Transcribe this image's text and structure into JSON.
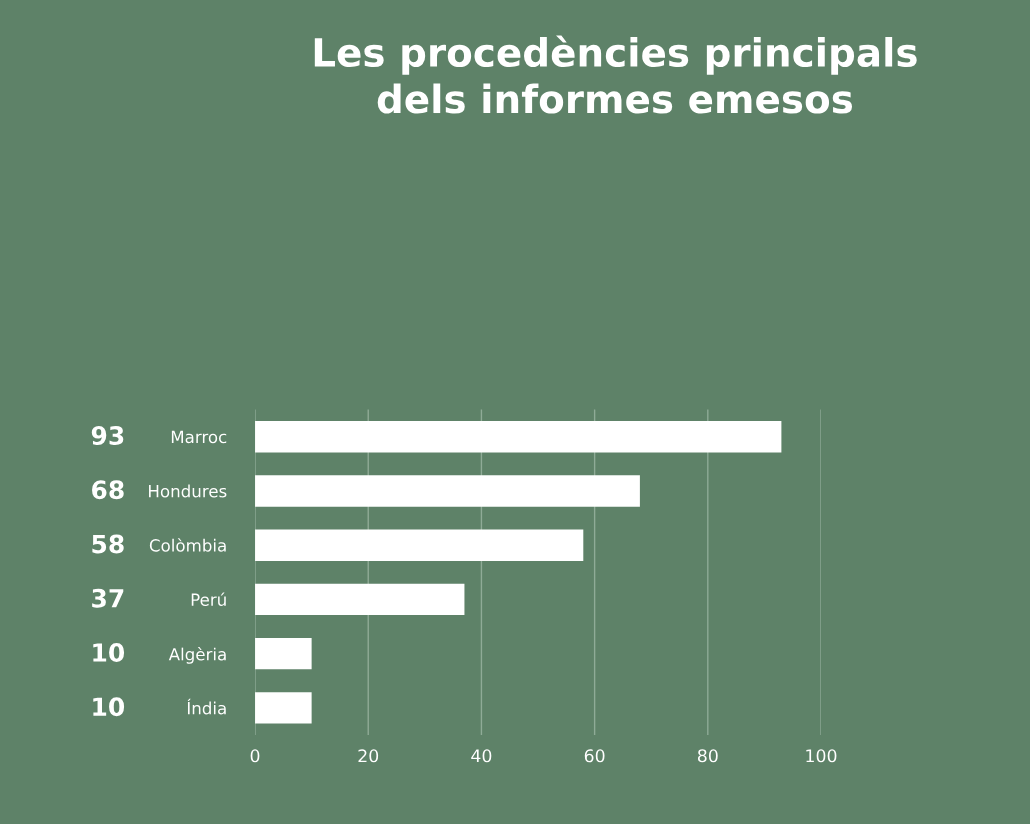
{
  "chart_data": {
    "type": "bar",
    "orientation": "horizontal",
    "title": "Les procedències principals\ndels informes emesos",
    "categories": [
      "Marroc",
      "Hondures",
      "Colòmbia",
      "Perú",
      "Algèria",
      "Índia"
    ],
    "values": [
      93,
      68,
      58,
      37,
      10,
      10
    ],
    "color": "#ffffff",
    "xlim": [
      0,
      100
    ],
    "xticks": [
      0,
      20,
      40,
      60,
      80,
      100
    ],
    "grid": "x",
    "data_labels": true,
    "legend": false
  }
}
